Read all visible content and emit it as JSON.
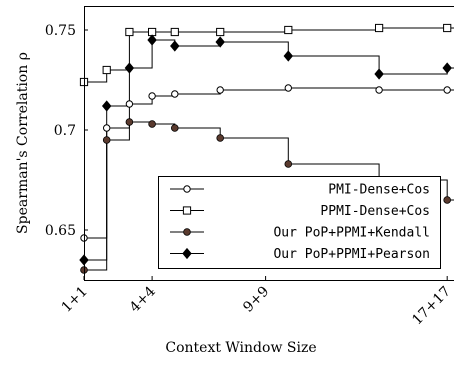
{
  "chart_data": {
    "type": "line",
    "xlabel": "Context Window Size",
    "ylabel": "Spearman's Correlation ρ",
    "x_tick_labels": [
      "1+1",
      "4+4",
      "9+9",
      "17+17"
    ],
    "x_tick_values": [
      1,
      4,
      9,
      17
    ],
    "xlim": [
      1,
      17.3
    ],
    "y_ticks": [
      0.65,
      0.7,
      0.75
    ],
    "y_tick_labels": [
      "0.65",
      "0.7",
      "0.75"
    ],
    "ylim": [
      0.625,
      0.762
    ],
    "legend_position": "lower-right",
    "line_style": "step",
    "series": [
      {
        "name": "PMI-Dense+Cos",
        "marker": "open-circle",
        "color": "#000000",
        "x": [
          1,
          2,
          3,
          4,
          5,
          7,
          10,
          14,
          17
        ],
        "y": [
          0.646,
          0.701,
          0.713,
          0.717,
          0.718,
          0.72,
          0.721,
          0.72,
          0.72
        ]
      },
      {
        "name": "PPMI-Dense+Cos",
        "marker": "open-square",
        "color": "#000000",
        "x": [
          1,
          2,
          3,
          4,
          5,
          7,
          10,
          14,
          17
        ],
        "y": [
          0.724,
          0.73,
          0.749,
          0.749,
          0.749,
          0.749,
          0.75,
          0.751,
          0.751
        ]
      },
      {
        "name": "Our PoP+PPMI+Kendall",
        "marker": "filled-circle",
        "color": "#5a3a2e",
        "x": [
          1,
          2,
          3,
          4,
          5,
          7,
          10,
          14,
          17
        ],
        "y": [
          0.63,
          0.695,
          0.704,
          0.703,
          0.701,
          0.696,
          0.683,
          0.675,
          0.665
        ]
      },
      {
        "name": "Our PoP+PPMI+Pearson",
        "marker": "filled-diamond",
        "color": "#000000",
        "x": [
          1,
          2,
          3,
          4,
          5,
          7,
          10,
          14,
          17
        ],
        "y": [
          0.635,
          0.712,
          0.731,
          0.745,
          0.742,
          0.744,
          0.737,
          0.728,
          0.731
        ]
      }
    ]
  }
}
